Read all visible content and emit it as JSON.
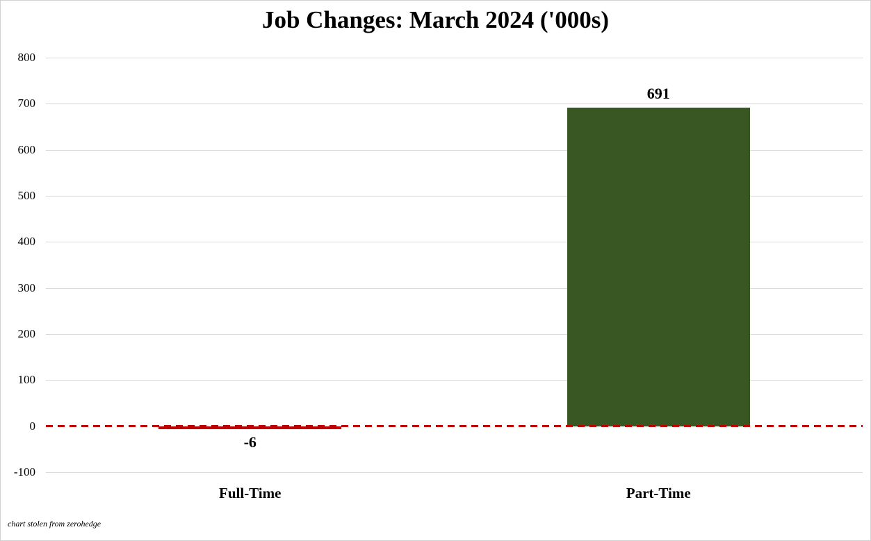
{
  "chart": {
    "title": "Job Changes: March 2024 ('000s)",
    "footnote": "chart stolen from zerohedge"
  },
  "chart_data": {
    "type": "bar",
    "title": "Job Changes: March 2024 ('000s)",
    "categories": [
      "Full-Time",
      "Part-Time"
    ],
    "values": [
      -6,
      691
    ],
    "data_labels": [
      "-6",
      "691"
    ],
    "bar_colors": [
      "#c00000",
      "#385723"
    ],
    "xlabel": "",
    "ylabel": "",
    "ylim": [
      -100,
      800
    ],
    "yticks": [
      800,
      700,
      600,
      500,
      400,
      300,
      200,
      100,
      0,
      -100
    ],
    "grid": true,
    "gridline_color": "#d9d9d9",
    "zero_line": {
      "style": "dashed",
      "color": "#c00000"
    },
    "legend": "none",
    "footnote": "chart stolen from zerohedge"
  }
}
